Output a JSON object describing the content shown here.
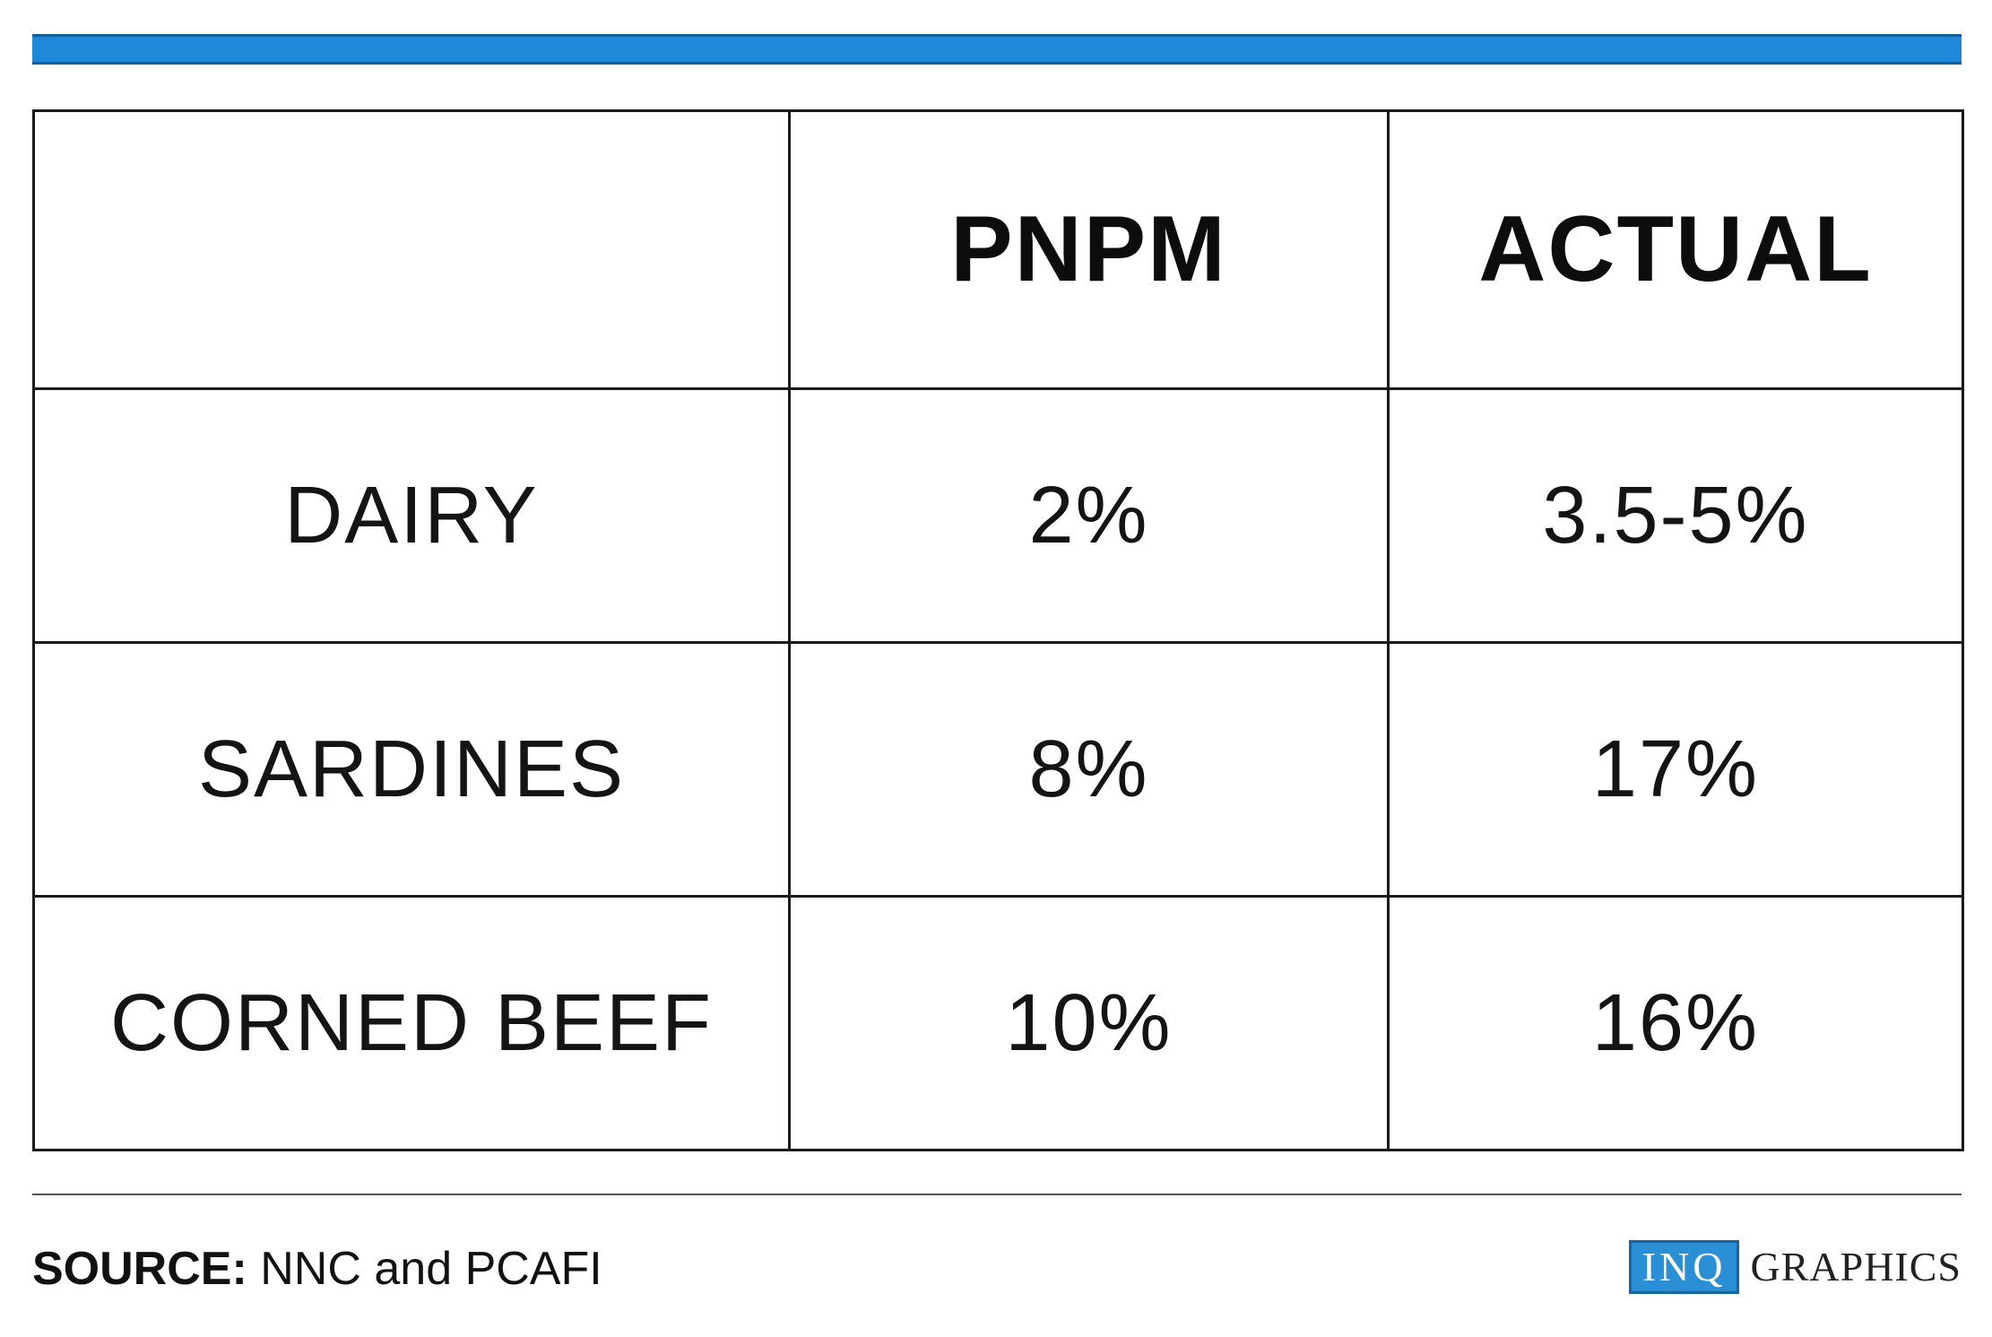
{
  "colors": {
    "top_bar": "#1f88d9",
    "logo_box": "#2b8fd6"
  },
  "chart_data": {
    "type": "table",
    "columns": [
      "",
      "PNPM",
      "ACTUAL"
    ],
    "rows": [
      {
        "label": "DAIRY",
        "pnpm": "2%",
        "actual": "3.5-5%"
      },
      {
        "label": "SARDINES",
        "pnpm": "8%",
        "actual": "17%"
      },
      {
        "label": "CORNED BEEF",
        "pnpm": "10%",
        "actual": "16%"
      }
    ]
  },
  "footer": {
    "source_label": "SOURCE:",
    "source_text": "NNC and PCAFI",
    "logo_box_text": "INQ",
    "logo_text": "GRAPHICS"
  }
}
